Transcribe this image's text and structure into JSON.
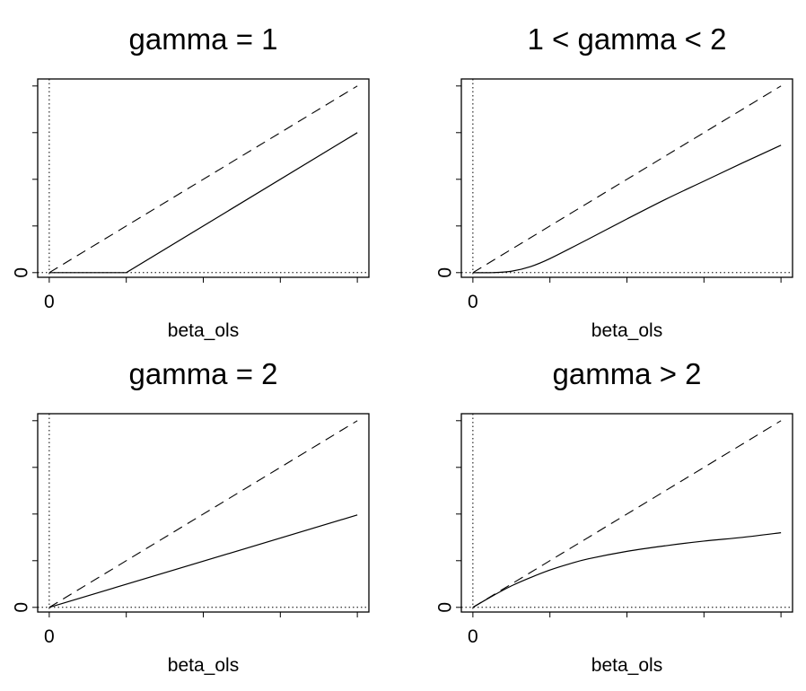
{
  "chart_data": [
    {
      "type": "line",
      "title": "gamma = 1",
      "xlabel": "beta_ols",
      "x_tick_label": "0",
      "y_tick_label": "0",
      "xlim": [
        -0.15,
        4.15
      ],
      "ylim": [
        -0.1,
        4.15
      ],
      "series": [
        {
          "style": "dashed",
          "x": [
            0,
            4
          ],
          "y": [
            0,
            4
          ]
        },
        {
          "style": "solid",
          "x": [
            0,
            1,
            4
          ],
          "y": [
            0,
            0,
            3
          ]
        }
      ]
    },
    {
      "type": "line",
      "title": "1 < gamma < 2",
      "xlabel": "beta_ols",
      "x_tick_label": "0",
      "y_tick_label": "0",
      "xlim": [
        -0.15,
        4.15
      ],
      "ylim": [
        -0.1,
        4.15
      ],
      "series": [
        {
          "style": "dashed",
          "x": [
            0,
            4
          ],
          "y": [
            0,
            4
          ]
        },
        {
          "style": "solid",
          "x": [
            0,
            0.25,
            0.5,
            0.75,
            1,
            1.5,
            2,
            2.5,
            3,
            3.5,
            4
          ],
          "y": [
            0,
            0.0,
            0.03,
            0.13,
            0.3,
            0.72,
            1.15,
            1.57,
            1.96,
            2.35,
            2.73
          ]
        }
      ]
    },
    {
      "type": "line",
      "title": "gamma = 2",
      "xlabel": "beta_ols",
      "x_tick_label": "0",
      "y_tick_label": "0",
      "xlim": [
        -0.15,
        4.15
      ],
      "ylim": [
        -0.1,
        4.15
      ],
      "series": [
        {
          "style": "dashed",
          "x": [
            0,
            4
          ],
          "y": [
            0,
            4
          ]
        },
        {
          "style": "solid",
          "x": [
            0,
            4
          ],
          "y": [
            0,
            1.98
          ]
        }
      ]
    },
    {
      "type": "line",
      "title": "gamma > 2",
      "xlabel": "beta_ols",
      "x_tick_label": "0",
      "y_tick_label": "0",
      "xlim": [
        -0.15,
        4.15
      ],
      "ylim": [
        -0.1,
        4.15
      ],
      "series": [
        {
          "style": "dashed",
          "x": [
            0,
            4
          ],
          "y": [
            0,
            4
          ]
        },
        {
          "style": "solid",
          "x": [
            0,
            0.25,
            0.5,
            0.75,
            1,
            1.25,
            1.5,
            2,
            2.5,
            3,
            3.5,
            4
          ],
          "y": [
            0,
            0.24,
            0.46,
            0.64,
            0.8,
            0.93,
            1.04,
            1.2,
            1.32,
            1.42,
            1.5,
            1.6
          ]
        }
      ]
    }
  ]
}
